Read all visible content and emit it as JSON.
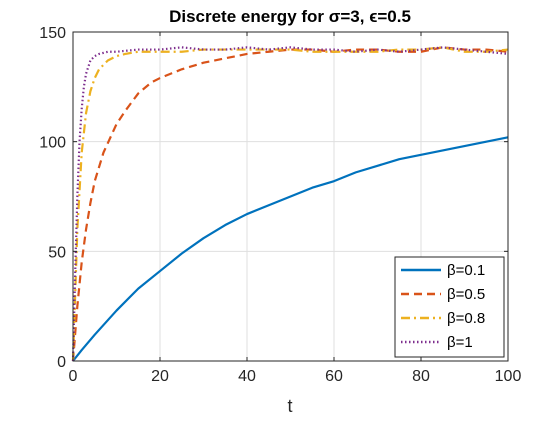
{
  "chart_data": {
    "type": "line",
    "title": "Discrete energy for σ=3, ϵ=0.5",
    "xlabel": "t",
    "ylabel": "",
    "xlim": [
      0,
      100
    ],
    "ylim": [
      0,
      150
    ],
    "xticks": [
      0,
      20,
      40,
      60,
      80,
      100
    ],
    "yticks": [
      0,
      50,
      100,
      150
    ],
    "grid": true,
    "legend_position": "bottom-right",
    "series": [
      {
        "name": "β=0.1",
        "color": "#0072BD",
        "style": "solid",
        "x": [
          0,
          2,
          5,
          10,
          15,
          20,
          25,
          30,
          35,
          40,
          45,
          50,
          55,
          60,
          65,
          70,
          75,
          80,
          85,
          90,
          95,
          100
        ],
        "values": [
          0,
          5,
          12,
          23,
          33,
          41,
          49,
          56,
          62,
          67,
          71,
          75,
          79,
          82,
          86,
          89,
          92,
          94,
          96,
          98,
          100,
          102
        ]
      },
      {
        "name": "β=0.5",
        "color": "#D95319",
        "style": "dashed",
        "x": [
          0,
          1,
          2,
          3,
          4,
          5,
          7,
          10,
          12,
          15,
          18,
          20,
          25,
          30,
          35,
          40,
          45,
          50,
          55,
          60,
          65,
          70,
          75,
          80,
          85,
          90,
          95,
          100
        ],
        "values": [
          0,
          25,
          45,
          60,
          72,
          82,
          95,
          108,
          114,
          122,
          127,
          129,
          133,
          136,
          138,
          140,
          141,
          142,
          142,
          141,
          142,
          142,
          141,
          141,
          143,
          142,
          142,
          141
        ]
      },
      {
        "name": "β=0.8",
        "color": "#EDB120",
        "style": "dashdot",
        "x": [
          0,
          1,
          2,
          3,
          4,
          5,
          6,
          8,
          10,
          12,
          15,
          20,
          25,
          30,
          35,
          40,
          45,
          50,
          55,
          60,
          65,
          70,
          75,
          80,
          85,
          90,
          95,
          100
        ],
        "values": [
          0,
          60,
          95,
          113,
          123,
          129,
          133,
          137,
          139,
          140,
          141,
          141,
          141,
          142,
          142,
          142,
          142,
          142,
          141,
          141,
          141,
          141,
          142,
          142,
          143,
          141,
          141,
          142
        ]
      },
      {
        "name": "β=1",
        "color": "#7E2F8E",
        "style": "dotted",
        "x": [
          0,
          0.5,
          1,
          1.5,
          2,
          2.5,
          3,
          4,
          5,
          6,
          8,
          10,
          15,
          20,
          25,
          30,
          35,
          40,
          45,
          50,
          55,
          60,
          65,
          70,
          75,
          80,
          85,
          90,
          95,
          100
        ],
        "values": [
          0,
          40,
          75,
          100,
          115,
          125,
          131,
          137,
          139,
          140,
          141,
          141,
          142,
          142,
          143,
          142,
          142,
          143,
          142,
          143,
          142,
          142,
          141,
          142,
          141,
          142,
          143,
          142,
          141,
          140
        ]
      }
    ]
  }
}
